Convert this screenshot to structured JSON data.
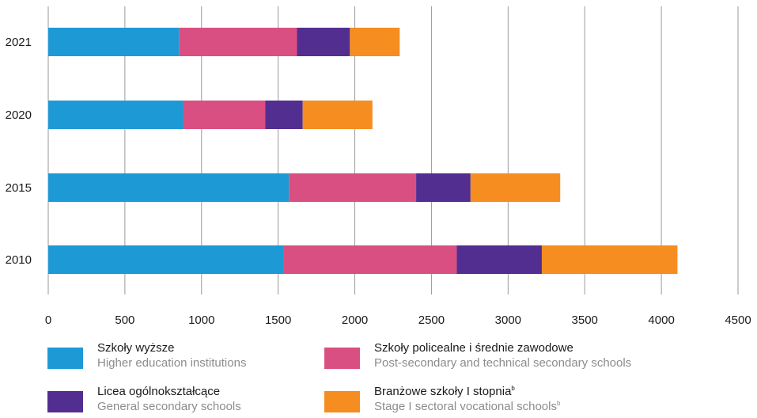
{
  "chart_data": {
    "type": "bar",
    "orientation": "horizontal",
    "stacked": true,
    "categories": [
      "2021",
      "2020",
      "2015",
      "2010"
    ],
    "series": [
      {
        "name": "Szkoły wyższe",
        "name_en": "Higher education institutions",
        "color": "#1d9ad6",
        "values": [
          853,
          880,
          1570,
          1535
        ]
      },
      {
        "name": "Szkoły policealne i średnie zawodowe",
        "name_en": "Post-secondary and technical secondary schools",
        "color": "#d94f82",
        "values": [
          770,
          535,
          830,
          1130
        ]
      },
      {
        "name": "Licea ogólnokształcące",
        "name_en": "General secondary schools",
        "color": "#532e91",
        "values": [
          345,
          245,
          355,
          555
        ]
      },
      {
        "name": "Branżowe szkoły I stopnia",
        "name_en": "Stage I sectoral vocational schools",
        "superscript": "b",
        "color": "#f68d20",
        "values": [
          325,
          455,
          585,
          885
        ]
      }
    ],
    "xlim": [
      0,
      4500
    ],
    "xticks": [
      0,
      500,
      1000,
      1500,
      2000,
      2500,
      3000,
      3500,
      4000,
      4500
    ],
    "grid": "vertical",
    "legend_position": "bottom",
    "title": "",
    "xlabel": "",
    "ylabel": ""
  }
}
